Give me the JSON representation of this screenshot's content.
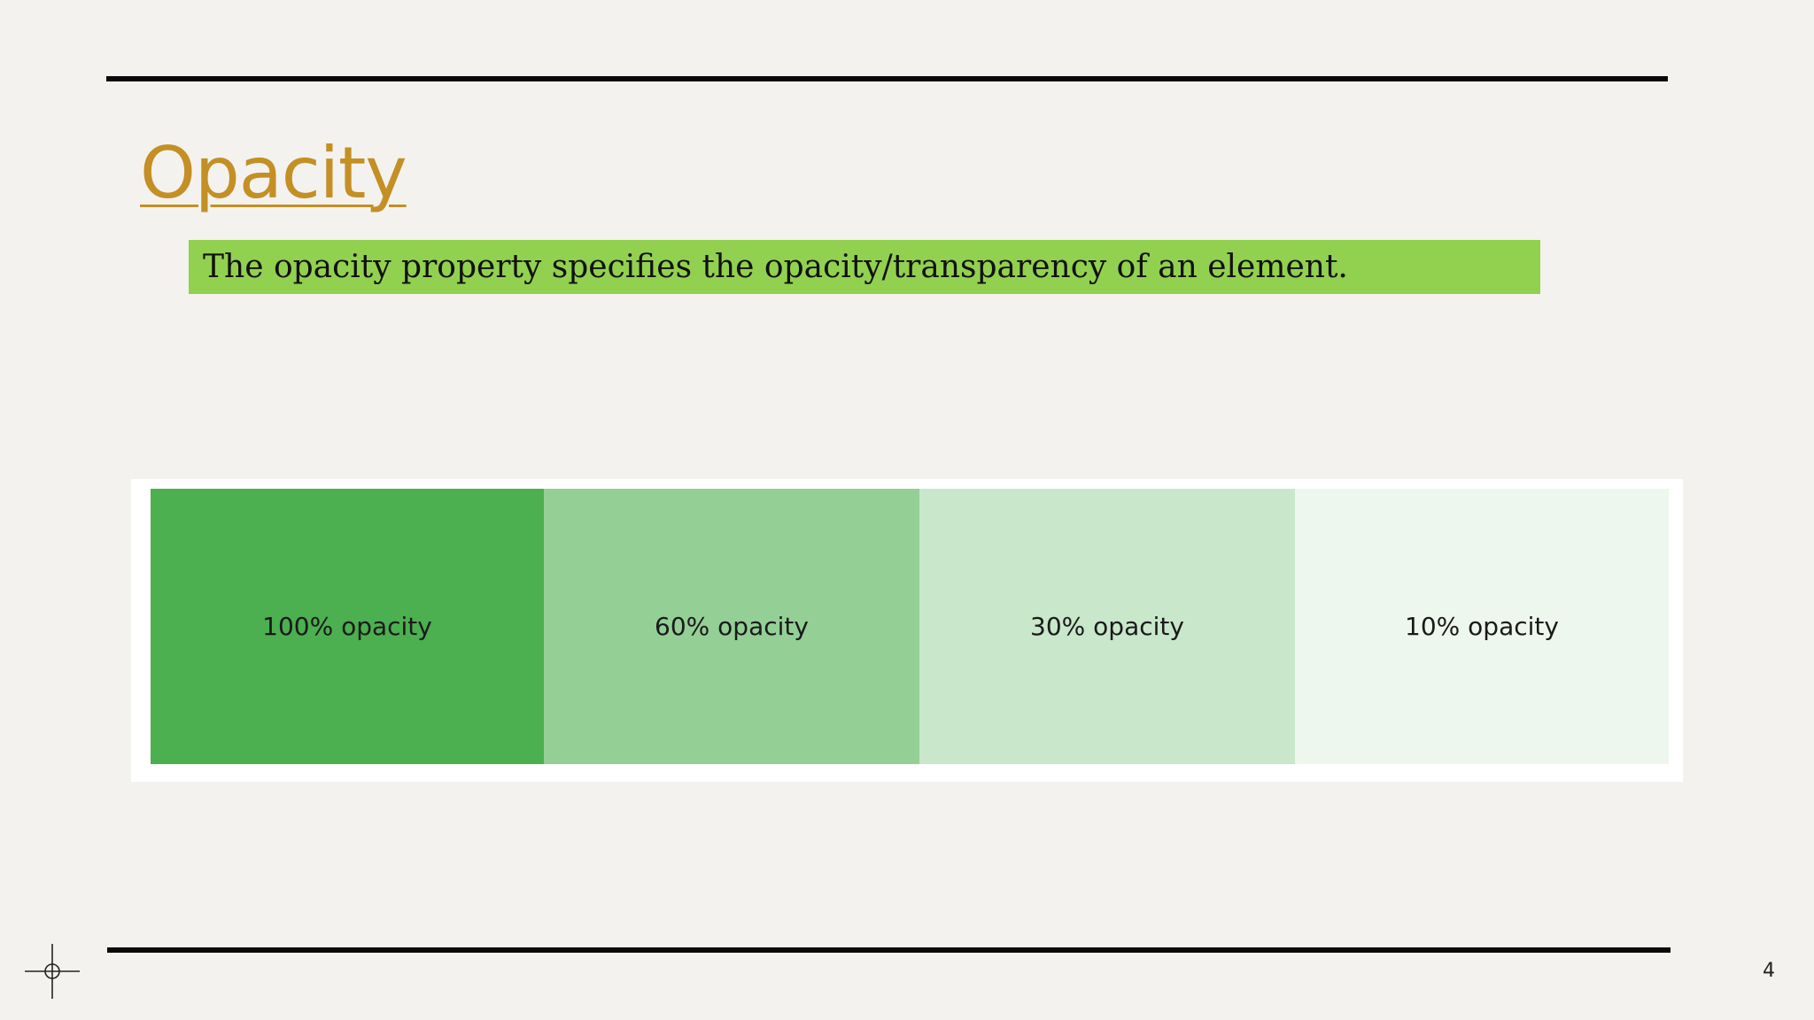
{
  "slide": {
    "title": "Opacity",
    "description": "The opacity property specifies the opacity/transparency of an element.",
    "page_number": "4"
  },
  "demo": {
    "base_color": "#4caf50",
    "boxes": [
      {
        "label": "100% opacity",
        "opacity": 1.0
      },
      {
        "label": "60% opacity",
        "opacity": 0.6
      },
      {
        "label": "30% opacity",
        "opacity": 0.3
      },
      {
        "label": "10% opacity",
        "opacity": 0.1
      }
    ]
  },
  "colors": {
    "title": "#c48f24",
    "description_highlight": "#92d050",
    "rules": "#0a0a0a",
    "background": "#f3f2ef"
  },
  "icons": {
    "crosshair": "crosshair-icon"
  }
}
